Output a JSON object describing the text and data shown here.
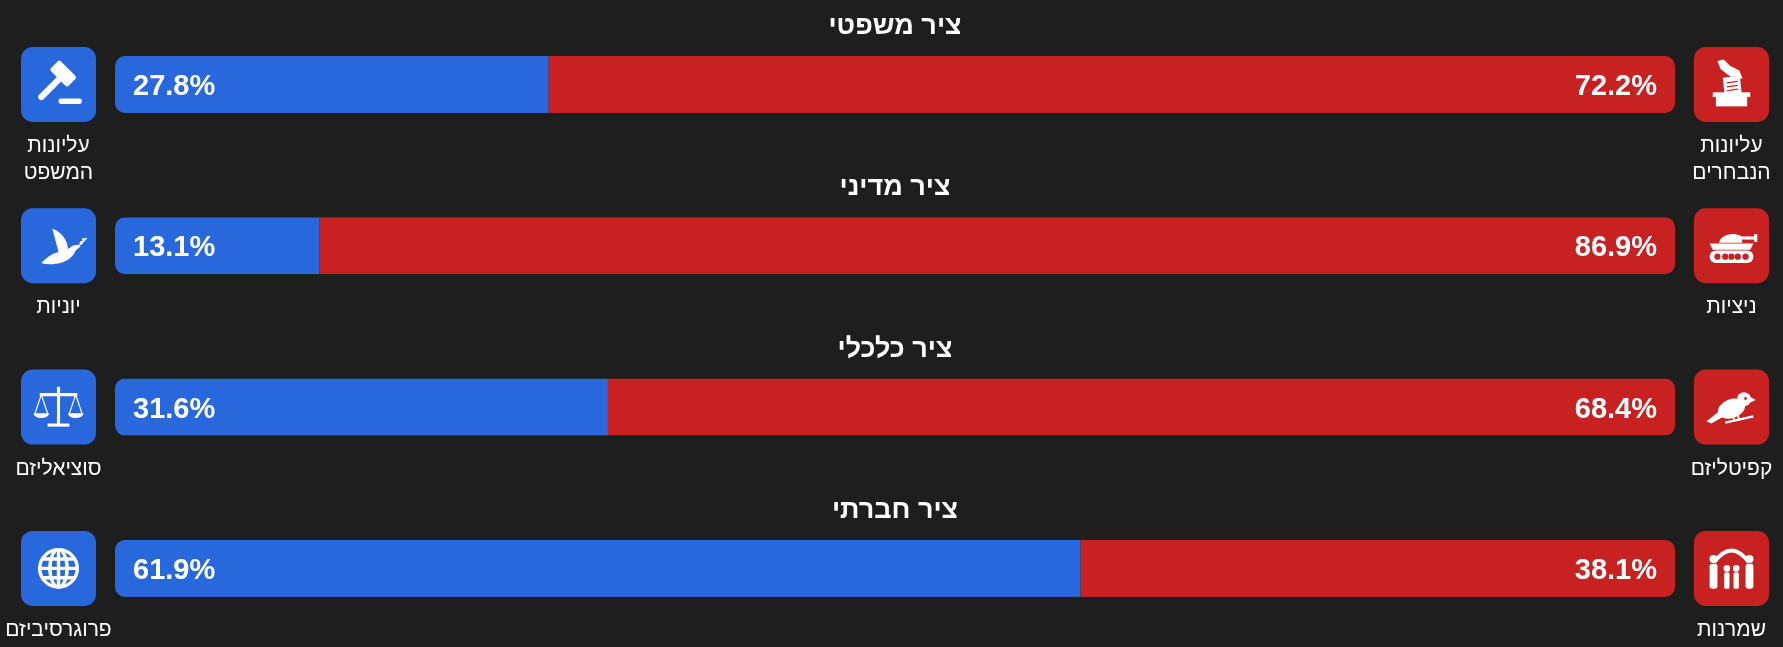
{
  "chart_data": [
    {
      "type": "bar",
      "orientation": "horizontal",
      "stacked": true,
      "title": "ציר משפטי",
      "categories": [
        null
      ],
      "xlim": [
        0,
        100
      ],
      "series": [
        {
          "name": "עליונות המשפט",
          "color": "#2968dc",
          "values": [
            27.8
          ],
          "value_labels": [
            "27.8%"
          ]
        },
        {
          "name": "עליונות הנבחרים",
          "color": "#c82122",
          "values": [
            72.2
          ],
          "value_labels": [
            "72.2%"
          ]
        }
      ]
    },
    {
      "type": "bar",
      "orientation": "horizontal",
      "stacked": true,
      "title": "ציר מדיני",
      "categories": [
        null
      ],
      "xlim": [
        0,
        100
      ],
      "series": [
        {
          "name": "יוניות",
          "color": "#2968dc",
          "values": [
            13.1
          ],
          "value_labels": [
            "13.1%"
          ]
        },
        {
          "name": "ניציות",
          "color": "#c82122",
          "values": [
            86.9
          ],
          "value_labels": [
            "86.9%"
          ]
        }
      ]
    },
    {
      "type": "bar",
      "orientation": "horizontal",
      "stacked": true,
      "title": "ציר כלכלי",
      "categories": [
        null
      ],
      "xlim": [
        0,
        100
      ],
      "series": [
        {
          "name": "סוציאליזם",
          "color": "#2968dc",
          "values": [
            31.6
          ],
          "value_labels": [
            "31.6%"
          ]
        },
        {
          "name": "קפיטליזם",
          "color": "#c82122",
          "values": [
            68.4
          ],
          "value_labels": [
            "68.4%"
          ]
        }
      ]
    },
    {
      "type": "bar",
      "orientation": "horizontal",
      "stacked": true,
      "title": "ציר חברתי",
      "categories": [
        null
      ],
      "xlim": [
        0,
        100
      ],
      "series": [
        {
          "name": "פרוגרסיביזם",
          "color": "#2968dc",
          "values": [
            61.9
          ],
          "value_labels": [
            "61.9%"
          ]
        },
        {
          "name": "שמרנות",
          "color": "#c82122",
          "values": [
            38.1
          ],
          "value_labels": [
            "38.1%"
          ]
        }
      ]
    }
  ]
}
